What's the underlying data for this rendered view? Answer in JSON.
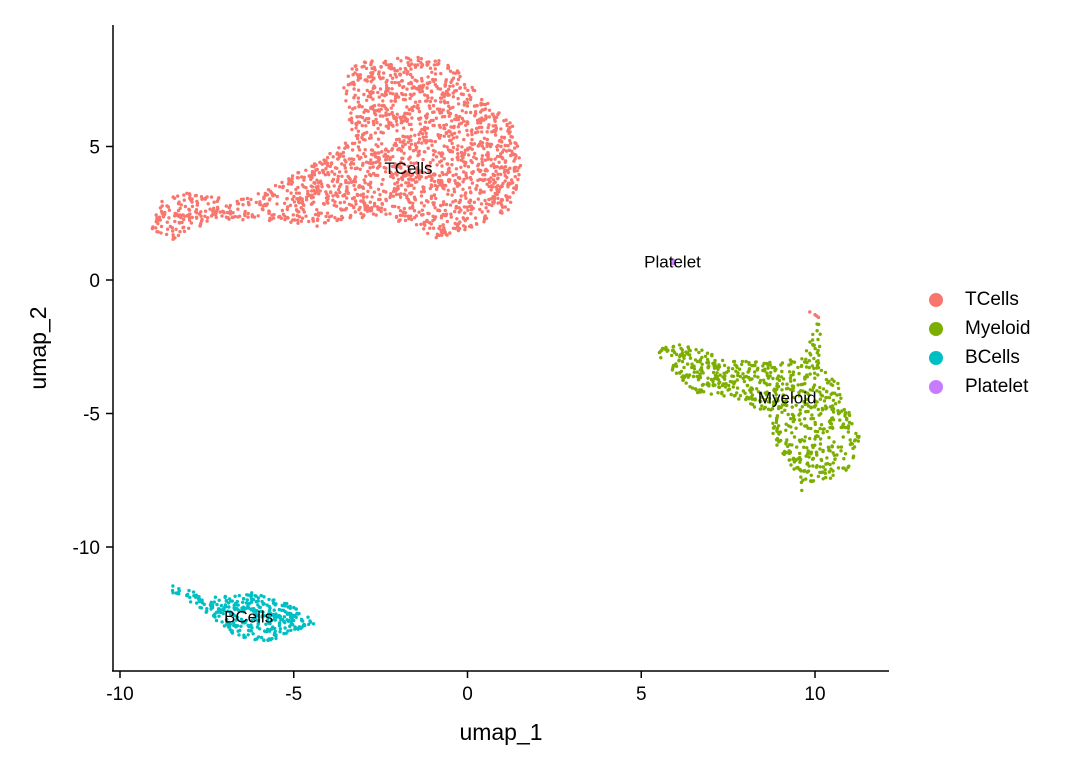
{
  "chart_data": {
    "type": "scatter",
    "title": "",
    "xlabel": "umap_1",
    "ylabel": "umap_2",
    "xlim": [
      -10.2,
      12.2
    ],
    "ylim": [
      -14.3,
      9.6
    ],
    "x_ticks": [
      -10,
      -5,
      0,
      5,
      10
    ],
    "y_ticks": [
      -10,
      -5,
      0,
      5
    ],
    "grid": false,
    "legend_position": "right",
    "series": [
      {
        "name": "TCells",
        "color": "#F8766D",
        "label_position": [
          -1.7,
          4.2
        ],
        "approx_points": 1900,
        "region_polygon": [
          [
            -9.1,
            2.0
          ],
          [
            -8.8,
            3.0
          ],
          [
            -7.8,
            3.4
          ],
          [
            -6.8,
            2.9
          ],
          [
            -5.6,
            3.5
          ],
          [
            -4.5,
            4.3
          ],
          [
            -3.3,
            5.3
          ],
          [
            -3.6,
            7.2
          ],
          [
            -3.3,
            8.1
          ],
          [
            -1.6,
            8.4
          ],
          [
            -0.5,
            8.2
          ],
          [
            0.3,
            7.0
          ],
          [
            1.3,
            5.8
          ],
          [
            1.6,
            4.2
          ],
          [
            1.2,
            2.6
          ],
          [
            0.0,
            1.9
          ],
          [
            -0.9,
            1.5
          ],
          [
            -1.4,
            2.0
          ],
          [
            -2.8,
            2.4
          ],
          [
            -4.3,
            2.0
          ],
          [
            -5.6,
            2.2
          ],
          [
            -7.2,
            2.3
          ],
          [
            -8.5,
            1.5
          ],
          [
            -9.1,
            1.7
          ]
        ]
      },
      {
        "name": "Myeloid",
        "color": "#7CAE00",
        "label_position": [
          9.2,
          -4.4
        ],
        "approx_points": 720,
        "region_polygon": [
          [
            5.3,
            -2.6
          ],
          [
            6.2,
            -2.4
          ],
          [
            7.5,
            -2.9
          ],
          [
            8.8,
            -3.1
          ],
          [
            9.7,
            -2.9
          ],
          [
            9.9,
            -1.6
          ],
          [
            10.2,
            -1.6
          ],
          [
            10.1,
            -3.1
          ],
          [
            10.7,
            -3.9
          ],
          [
            11.0,
            -5.0
          ],
          [
            11.3,
            -5.9
          ],
          [
            11.0,
            -7.1
          ],
          [
            10.2,
            -7.6
          ],
          [
            9.6,
            -7.9
          ],
          [
            9.3,
            -6.9
          ],
          [
            8.9,
            -6.2
          ],
          [
            8.6,
            -5.0
          ],
          [
            7.7,
            -4.4
          ],
          [
            6.5,
            -4.2
          ],
          [
            5.8,
            -3.3
          ]
        ]
      },
      {
        "name": "BCells",
        "color": "#00BFC4",
        "label_position": [
          -6.3,
          -12.6
        ],
        "approx_points": 330,
        "region_polygon": [
          [
            -8.5,
            -11.4
          ],
          [
            -7.4,
            -11.9
          ],
          [
            -6.5,
            -11.6
          ],
          [
            -5.5,
            -11.9
          ],
          [
            -4.5,
            -12.6
          ],
          [
            -4.4,
            -12.9
          ],
          [
            -5.2,
            -13.3
          ],
          [
            -5.8,
            -13.6
          ],
          [
            -6.7,
            -13.3
          ],
          [
            -7.6,
            -12.4
          ],
          [
            -8.5,
            -11.7
          ]
        ]
      },
      {
        "name": "Platelet",
        "color": "#C77CFF",
        "label_position": [
          5.9,
          0.7
        ],
        "approx_points": 2,
        "region_polygon": [
          [
            5.85,
            0.6
          ],
          [
            5.95,
            0.6
          ],
          [
            5.95,
            0.75
          ],
          [
            5.85,
            0.75
          ]
        ]
      }
    ],
    "extra_points": [
      {
        "series": "TCells",
        "points": [
          [
            9.85,
            -1.2
          ],
          [
            10.0,
            -1.3
          ],
          [
            10.1,
            -1.4
          ],
          [
            10.05,
            -1.35
          ]
        ]
      }
    ]
  },
  "legend": {
    "items": [
      {
        "label": "TCells",
        "color": "#F8766D"
      },
      {
        "label": "Myeloid",
        "color": "#7CAE00"
      },
      {
        "label": "BCells",
        "color": "#00BFC4"
      },
      {
        "label": "Platelet",
        "color": "#C77CFF"
      }
    ]
  },
  "axes": {
    "x_title": "umap_1",
    "y_title": "umap_2",
    "x_tick_labels": [
      "-10",
      "-5",
      "0",
      "5",
      "10"
    ],
    "y_tick_labels": [
      "-10",
      "-5",
      "0",
      "5"
    ]
  }
}
